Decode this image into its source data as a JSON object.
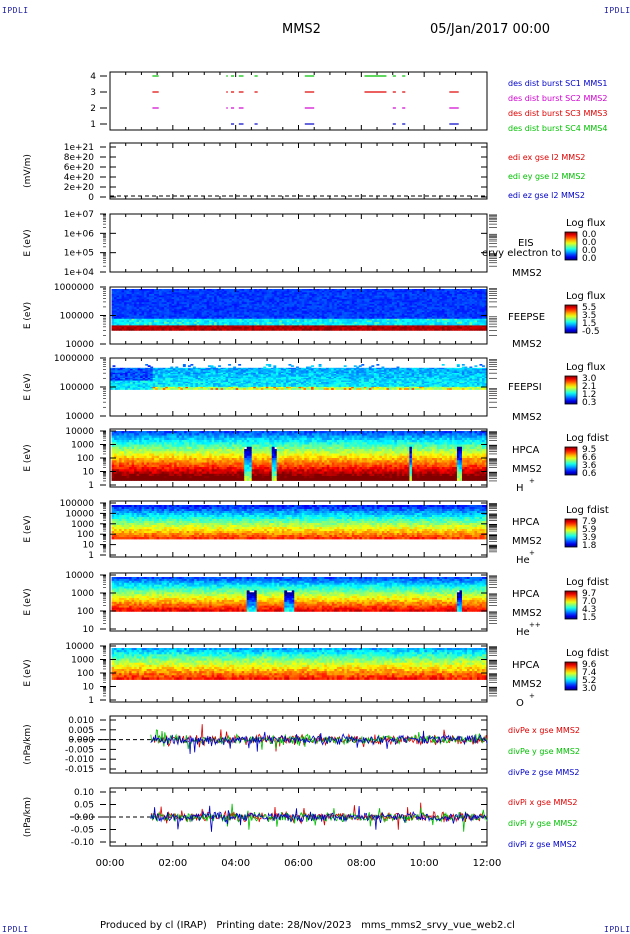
{
  "corners": {
    "text": "IPDLI"
  },
  "header": {
    "spacecraft": "MMS2",
    "date": "05/Jan/2017 00:00"
  },
  "footer": {
    "produced": "Produced by cl (IRAP)",
    "printing": "Printing date: 28/Nov/2023",
    "file": "mms_mms2_srvy_vue_web2.cl"
  },
  "colors": {
    "blue": "#0000c8",
    "magenta": "#d000d0",
    "red": "#e00000",
    "green": "#00c000",
    "black": "#000000"
  },
  "chart_data": {
    "type": "multi-panel time series / spectrogram",
    "xaxis": {
      "ticks": [
        "00:00",
        "02:00",
        "04:00",
        "06:00",
        "08:00",
        "10:00",
        "12:00"
      ],
      "range_hours": [
        0,
        12
      ]
    },
    "panels": [
      {
        "id": "burst",
        "type": "timeline",
        "yticks": [
          "4",
          "3",
          "2",
          "1"
        ],
        "legend": [
          {
            "label": "des dist burst SC1 MMS1",
            "color": "#0000c8"
          },
          {
            "label": "des dist burst SC2 MMS2",
            "color": "#d000d0"
          },
          {
            "label": "des dist burst SC3 MMS3",
            "color": "#e00000"
          },
          {
            "label": "des dist burst SC4 MMS4",
            "color": "#00c000"
          }
        ],
        "segments": [
          [
            1.35,
            1.55
          ],
          [
            3.7,
            3.75
          ],
          [
            3.85,
            3.95
          ],
          [
            4.1,
            4.25
          ],
          [
            4.6,
            4.7
          ],
          [
            6.2,
            6.5
          ],
          [
            8.1,
            8.8
          ],
          [
            9.0,
            9.1
          ],
          [
            9.3,
            9.4
          ],
          [
            10.8,
            11.1
          ]
        ]
      },
      {
        "id": "edi",
        "type": "line",
        "ylabel": "(mV/m)",
        "yticks": [
          "1e+21",
          "8e+20",
          "6e+20",
          "4e+20",
          "2e+20",
          "0"
        ],
        "legend": [
          {
            "label": "edi ex gse l2 MMS2",
            "color": "#e00000"
          },
          {
            "label": "edi ey gse l2 MMS2",
            "color": "#00c000"
          },
          {
            "label": "edi ez gse l2 MMS2",
            "color": "#0000c8"
          }
        ]
      },
      {
        "id": "eis",
        "type": "spectrogram",
        "ylabel": "E (eV)",
        "yticks": [
          "1e+07",
          "1e+06",
          "1e+05",
          "1e+04"
        ],
        "labels": [
          "EIS",
          "MMS2"
        ],
        "overlay": "ervy electron to",
        "colorbar": {
          "title": "Log flux",
          "ticks": [
            "0.0",
            "0.0",
            "0.0",
            "0.0"
          ]
        }
      },
      {
        "id": "feepse",
        "type": "spectrogram",
        "ylabel": "E (eV)",
        "yticks": [
          "1000000",
          "100000",
          "10000"
        ],
        "labels": [
          "FEEPSE",
          "MMS2"
        ],
        "colorbar": {
          "title": "Log flux",
          "ticks": [
            "5.5",
            "3.5",
            "1.5",
            "-0.5"
          ]
        }
      },
      {
        "id": "feepsi",
        "type": "spectrogram",
        "ylabel": "E (eV)",
        "yticks": [
          "1000000",
          "100000",
          "10000"
        ],
        "labels": [
          "FEEPSI",
          "MMS2"
        ],
        "colorbar": {
          "title": "Log flux",
          "ticks": [
            "3.0",
            "2.1",
            "1.2",
            "0.3"
          ]
        }
      },
      {
        "id": "hpca-h",
        "type": "spectrogram",
        "ylabel": "E (eV)",
        "yticks": [
          "10000",
          "1000",
          "100",
          "10",
          "1"
        ],
        "labels": [
          "HPCA",
          "MMS2",
          "H",
          "+"
        ],
        "colorbar": {
          "title": "Log fdist",
          "ticks": [
            "9.5",
            "6.6",
            "3.6",
            "0.6"
          ]
        }
      },
      {
        "id": "hpca-he",
        "type": "spectrogram",
        "ylabel": "E (eV)",
        "yticks": [
          "100000",
          "10000",
          "1000",
          "100",
          "10",
          "1"
        ],
        "labels": [
          "HPCA",
          "MMS2",
          "He",
          "+"
        ],
        "colorbar": {
          "title": "Log fdist",
          "ticks": [
            "7.9",
            "5.9",
            "3.9",
            "1.8"
          ]
        }
      },
      {
        "id": "hpca-he2",
        "type": "spectrogram",
        "ylabel": "E (eV)",
        "yticks": [
          "10000",
          "1000",
          "100",
          "10"
        ],
        "labels": [
          "HPCA",
          "MMS2",
          "He",
          "++"
        ],
        "colorbar": {
          "title": "Log fdist",
          "ticks": [
            "9.7",
            "7.0",
            "4.3",
            "1.5"
          ]
        }
      },
      {
        "id": "hpca-o",
        "type": "spectrogram",
        "ylabel": "E (eV)",
        "yticks": [
          "10000",
          "1000",
          "100",
          "10",
          "1"
        ],
        "labels": [
          "HPCA",
          "MMS2",
          "O",
          "+"
        ],
        "colorbar": {
          "title": "Log fdist",
          "ticks": [
            "9.6",
            "7.4",
            "5.2",
            "3.0"
          ]
        }
      },
      {
        "id": "divpe",
        "type": "line",
        "ylabel": "(nPa/km)",
        "yticks": [
          "0.010",
          "0.005",
          "0.000",
          "-0.005",
          "-0.010",
          "-0.015"
        ],
        "legend": [
          {
            "label": "divPe x gse MMS2",
            "color": "#e00000"
          },
          {
            "label": "divPe y gse MMS2",
            "color": "#00c000"
          },
          {
            "label": "divPe z gse MMS2",
            "color": "#0000c8"
          }
        ]
      },
      {
        "id": "divpi",
        "type": "line",
        "ylabel": "(nPa/km)",
        "yticks": [
          "0.10",
          "0.05",
          "0.00",
          "-0.05",
          "-0.10"
        ],
        "legend": [
          {
            "label": "divPi x gse MMS2",
            "color": "#e00000"
          },
          {
            "label": "divPi y gse MMS2",
            "color": "#00c000"
          },
          {
            "label": "divPi z gse MMS2",
            "color": "#0000c8"
          }
        ]
      }
    ]
  }
}
